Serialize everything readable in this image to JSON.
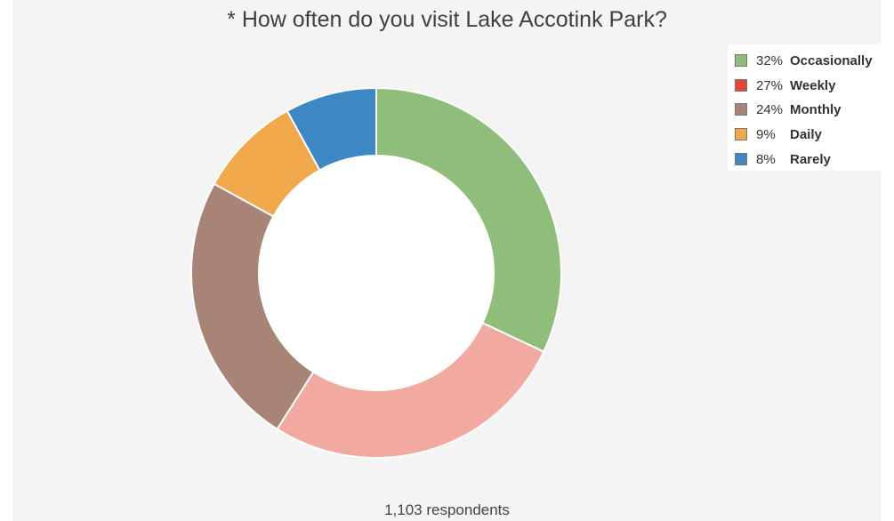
{
  "colors": {
    "background": "#f4f4f4",
    "occasionally": "#8fbd7a",
    "weekly": "#f2aaa0",
    "weekly_legend": "#e2483a",
    "monthly": "#a88476",
    "daily": "#f0a84b",
    "rarely": "#3d88c4"
  },
  "footer": {
    "respondents": "1,103 respondents"
  },
  "chart_data": {
    "type": "pie",
    "title": "* How often do you visit Lake Accotink Park?",
    "donut": true,
    "legend_position": "top-right",
    "slices": [
      {
        "label": "Occasionally",
        "value": 32,
        "pct_label": "32%",
        "color": "#8fbd7a",
        "legend_color": "#8fbd7a"
      },
      {
        "label": "Weekly",
        "value": 27,
        "pct_label": "27%",
        "color": "#f2aaa0",
        "legend_color": "#e2483a"
      },
      {
        "label": "Monthly",
        "value": 24,
        "pct_label": "24%",
        "color": "#a88476",
        "legend_color": "#a88476"
      },
      {
        "label": "Daily",
        "value": 9,
        "pct_label": "9%",
        "color": "#f0a84b",
        "legend_color": "#f0a84b"
      },
      {
        "label": "Rarely",
        "value": 8,
        "pct_label": "8%",
        "color": "#3d88c4",
        "legend_color": "#3d88c4"
      }
    ]
  }
}
